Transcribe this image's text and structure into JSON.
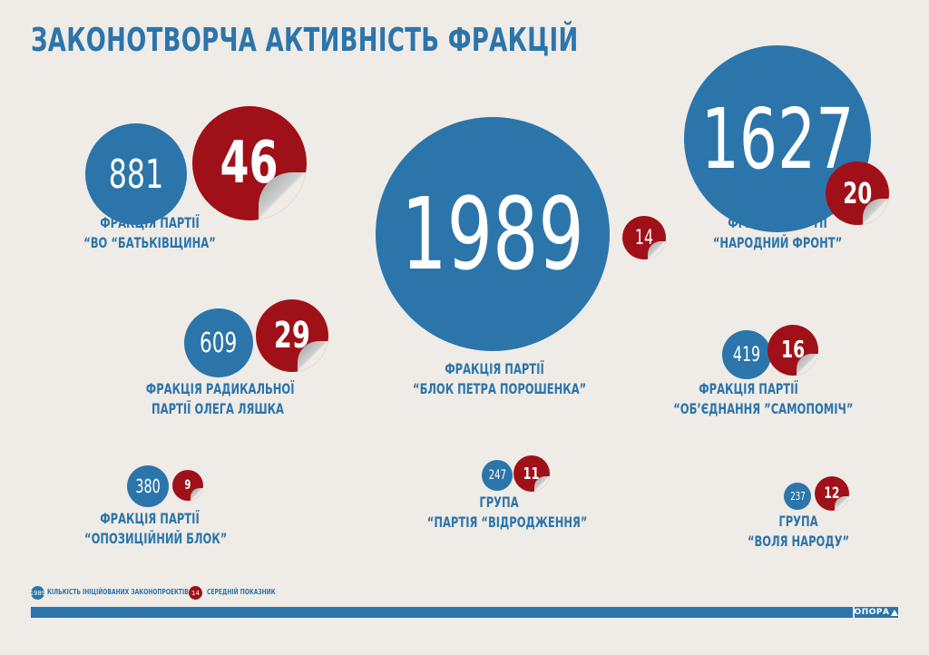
{
  "title": "ЗАКОНОТВОРЧА АКТИВНІСТЬ ФРАКЦІЙ",
  "colors": {
    "blue": "#2b75ab",
    "red": "#a01018",
    "background": "#efebe6"
  },
  "factions": [
    {
      "bills": "881",
      "average": "46",
      "label_line1": "ФРАКЦІЯ ПАРТІЇ",
      "label_line2": "“ВО “БАТЬКІВЩИНА”"
    },
    {
      "bills": "1989",
      "average": "14",
      "label_line1": "ФРАКЦІЯ ПАРТІЇ",
      "label_line2": "“БЛОК ПЕТРА ПОРОШЕНКА”"
    },
    {
      "bills": "1627",
      "average": "20",
      "label_line1": "ФРАКЦІЯ ПАРТІЇ",
      "label_line2": "“НАРОДНИЙ ФРОНТ”"
    },
    {
      "bills": "609",
      "average": "29",
      "label_line1": "ФРАКЦІЯ РАДИКАЛЬНОЇ",
      "label_line2": "ПАРТІЇ ОЛЕГА ЛЯШКА"
    },
    {
      "bills": "419",
      "average": "16",
      "label_line1": "ФРАКЦІЯ ПАРТІЇ",
      "label_line2": "“ОБ’ЄДНАННЯ ”САМОПОМІЧ”"
    },
    {
      "bills": "380",
      "average": "9",
      "label_line1": "ФРАКЦІЯ ПАРТІЇ",
      "label_line2": "“ОПОЗИЦІЙНИЙ БЛОК”"
    },
    {
      "bills": "247",
      "average": "11",
      "label_line1": "ГРУПА",
      "label_line2": "“ПАРТІЯ “ВІДРОДЖЕННЯ”"
    },
    {
      "bills": "237",
      "average": "12",
      "label_line1": "ГРУПА",
      "label_line2": "“ВОЛЯ НАРОДУ”"
    }
  ],
  "legend": {
    "bills_sample": "1989",
    "bills_text": "КІЛЬКІСТЬ ІНІЦІЙОВАНИХ ЗАКОНОПРОЕКТІВ",
    "average_sample": "14",
    "average_text": "СЕРЕДНІЙ ПОКАЗНИК"
  },
  "footer": {
    "logo": "ОПОРА",
    "logo_icon": "triangle-icon"
  }
}
